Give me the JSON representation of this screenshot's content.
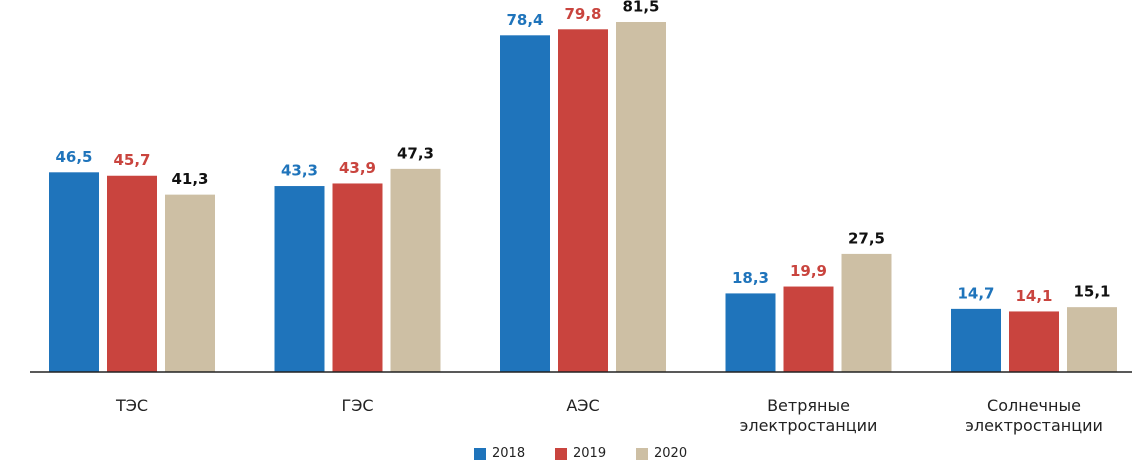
{
  "chart_data": {
    "type": "bar",
    "categories": [
      "ТЭС",
      "ГЭС",
      "АЭС",
      "Ветряные электростанции",
      "Солнечные электростанции"
    ],
    "series": [
      {
        "name": "2018",
        "color": "#1f74bb",
        "label_color": "#1f74bb",
        "values": [
          46.5,
          43.3,
          78.4,
          18.3,
          14.7
        ],
        "value_labels": [
          "46,5",
          "43,3",
          "78,4",
          "18,3",
          "14,7"
        ]
      },
      {
        "name": "2019",
        "color": "#c9443e",
        "label_color": "#c9443e",
        "values": [
          45.7,
          43.9,
          79.8,
          19.9,
          14.1
        ],
        "value_labels": [
          "45,7",
          "43,9",
          "79,8",
          "19,9",
          "14,1"
        ]
      },
      {
        "name": "2020",
        "color": "#cdbfa4",
        "label_color": "#111111",
        "values": [
          41.3,
          47.3,
          81.5,
          27.5,
          15.1
        ],
        "value_labels": [
          "41,3",
          "47,3",
          "81,5",
          "27,5",
          "15,1"
        ]
      }
    ],
    "legend": "bottom"
  }
}
